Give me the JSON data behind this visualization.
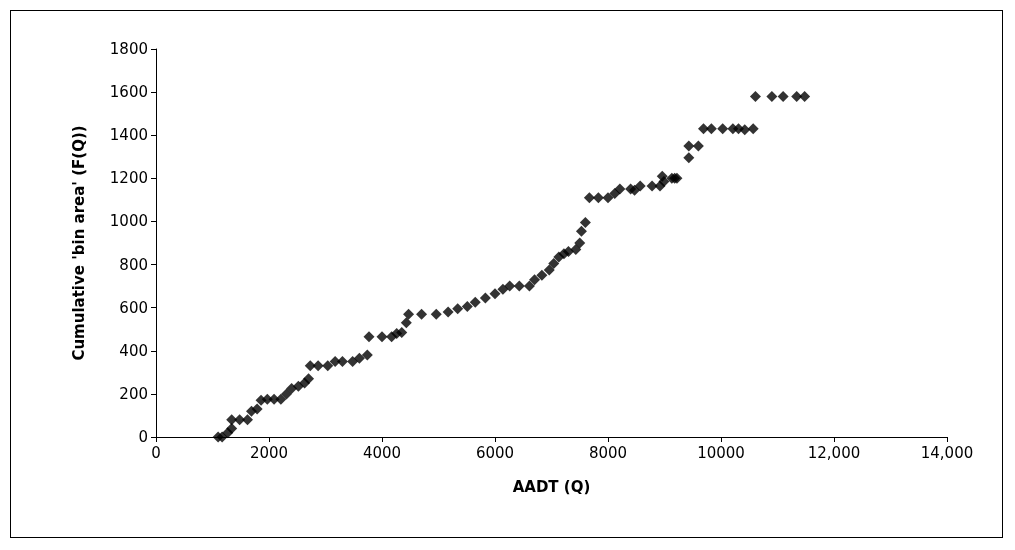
{
  "chart_data": {
    "type": "scatter",
    "xlabel": "AADT (Q)",
    "ylabel": "Cumulative 'bin area' (F(Q))",
    "marker": "diamond",
    "xlim": [
      0,
      14000
    ],
    "xticks": [
      0,
      2000,
      4000,
      6000,
      8000,
      10000,
      {
        "value": 12000,
        "label": "12,000"
      },
      {
        "value": 14000,
        "label": "14,000"
      }
    ],
    "ylim": [
      0,
      1800
    ],
    "yticks": [
      0,
      200,
      400,
      600,
      800,
      1000,
      1200,
      1400,
      1600,
      1800
    ],
    "series": [
      {
        "color": "#000000",
        "x": [
          1100,
          1170,
          1270,
          1340,
          1340,
          1480,
          1620,
          1690,
          1790,
          1860,
          1970,
          2090,
          2210,
          2310,
          2400,
          2520,
          2630,
          2700,
          2730,
          2870,
          3040,
          3170,
          3300,
          3480,
          3600,
          3740,
          3770,
          4000,
          4170,
          4260,
          4350,
          4430,
          4470,
          4700,
          4960,
          5170,
          5340,
          5510,
          5650,
          5830,
          6000,
          6140,
          6260,
          6430,
          6610,
          6700,
          6830,
          6960,
          7040,
          7130,
          7220,
          7300,
          7430,
          7500,
          7530,
          7600,
          7670,
          7830,
          8000,
          8120,
          8210,
          8400,
          8470,
          8570,
          8780,
          8920,
          8960,
          8990,
          9130,
          9180,
          9220,
          9430,
          9430,
          9600,
          9690,
          9830,
          10030,
          10210,
          10310,
          10420,
          10570,
          10610,
          10900,
          11100,
          11340,
          11480
        ],
        "values": [
          0,
          0,
          20,
          40,
          80,
          80,
          80,
          120,
          130,
          170,
          175,
          175,
          175,
          200,
          225,
          235,
          250,
          270,
          330,
          330,
          330,
          350,
          350,
          350,
          365,
          380,
          465,
          465,
          465,
          480,
          485,
          530,
          570,
          570,
          570,
          580,
          595,
          605,
          625,
          645,
          665,
          685,
          700,
          700,
          700,
          730,
          750,
          775,
          805,
          835,
          850,
          860,
          870,
          900,
          955,
          995,
          1110,
          1110,
          1110,
          1130,
          1150,
          1150,
          1145,
          1165,
          1165,
          1165,
          1210,
          1185,
          1200,
          1200,
          1200,
          1295,
          1350,
          1350,
          1430,
          1430,
          1430,
          1430,
          1430,
          1425,
          1430,
          1580,
          1580,
          1580,
          1580,
          1580
        ]
      }
    ]
  }
}
